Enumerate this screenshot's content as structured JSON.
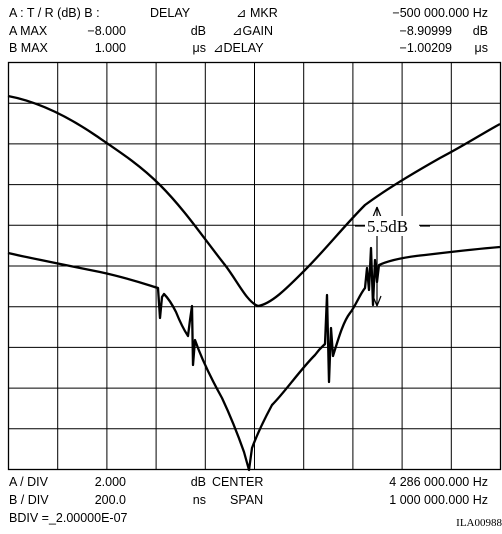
{
  "header": {
    "row1": {
      "mode": "A : T / R (dB) B :",
      "b_mode": "DELAY",
      "mkr_label": "⊿ MKR",
      "mkr_value": "−500 000.000 Hz"
    },
    "row2": {
      "label": "A   MAX",
      "value": "−8.000",
      "unit": "dB",
      "gain_label": "⊿GAIN",
      "gain_value": "−8.90999",
      "gain_unit": "dB"
    },
    "row3": {
      "label": "B   MAX",
      "value": "1.000",
      "unit": "μs",
      "delay_label": "⊿DELAY",
      "delay_value": "−1.00209",
      "delay_unit": "μs"
    }
  },
  "plot": {
    "annotation": "5.5dB",
    "trace_color": "#000000",
    "grid_color": "#000000",
    "divisions_x": 10,
    "divisions_y": 10
  },
  "footer": {
    "row1": {
      "label": "A / DIV",
      "value": "2.000",
      "unit": "dB",
      "center_label": "CENTER",
      "center_value": "4 286 000.000 Hz"
    },
    "row2": {
      "label": "B / DIV",
      "value": "200.0",
      "unit": "ns",
      "span_label": "SPAN",
      "span_value": "1 000 000.000 Hz"
    },
    "row3": {
      "bdiv": "BDIV =_2.00000E-07",
      "figure_id": "ILA00988"
    }
  }
}
